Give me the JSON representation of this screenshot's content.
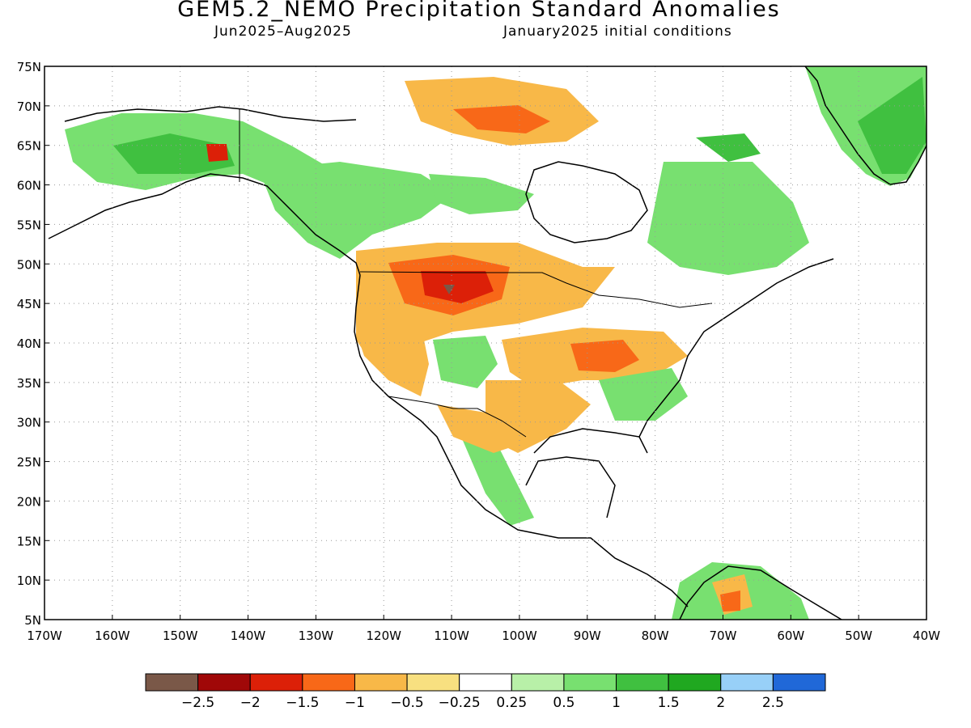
{
  "header": {
    "title": "GEM5.2_NEMO Precipitation Standard Anomalies",
    "period": "Jun2025–Aug2025",
    "initial_conditions": "January2025 initial conditions"
  },
  "map": {
    "lon_range": [
      -170,
      -40
    ],
    "lat_range": [
      5,
      75
    ],
    "lat_ticks": [
      {
        "value": 75,
        "label": "75N"
      },
      {
        "value": 70,
        "label": "70N"
      },
      {
        "value": 65,
        "label": "65N"
      },
      {
        "value": 60,
        "label": "60N"
      },
      {
        "value": 55,
        "label": "55N"
      },
      {
        "value": 50,
        "label": "50N"
      },
      {
        "value": 45,
        "label": "45N"
      },
      {
        "value": 40,
        "label": "40N"
      },
      {
        "value": 35,
        "label": "35N"
      },
      {
        "value": 30,
        "label": "30N"
      },
      {
        "value": 25,
        "label": "25N"
      },
      {
        "value": 20,
        "label": "20N"
      },
      {
        "value": 15,
        "label": "15N"
      },
      {
        "value": 10,
        "label": "10N"
      },
      {
        "value": 5,
        "label": "5N"
      }
    ],
    "lon_ticks": [
      {
        "value": -170,
        "label": "170W"
      },
      {
        "value": -160,
        "label": "160W"
      },
      {
        "value": -150,
        "label": "150W"
      },
      {
        "value": -140,
        "label": "140W"
      },
      {
        "value": -130,
        "label": "130W"
      },
      {
        "value": -120,
        "label": "120W"
      },
      {
        "value": -110,
        "label": "110W"
      },
      {
        "value": -100,
        "label": "100W"
      },
      {
        "value": -90,
        "label": "90W"
      },
      {
        "value": -80,
        "label": "80W"
      },
      {
        "value": -70,
        "label": "70W"
      },
      {
        "value": -60,
        "label": "60W"
      },
      {
        "value": -50,
        "label": "50W"
      },
      {
        "value": -40,
        "label": "40W"
      }
    ],
    "grid": "dotted"
  },
  "legend": {
    "colors": [
      "#7a5848",
      "#a00808",
      "#dc2008",
      "#f86818",
      "#f8b848",
      "#f8e080",
      "#ffffff",
      "#b8f0a8",
      "#78e070",
      "#40c040",
      "#20a820",
      "#98d0f8",
      "#2068d8"
    ],
    "labels": [
      "−2.5",
      "−2",
      "−1.5",
      "−1",
      "−0.5",
      "−0.25",
      "0.25",
      "0.5",
      "1",
      "1.5",
      "2",
      "2.5"
    ]
  }
}
